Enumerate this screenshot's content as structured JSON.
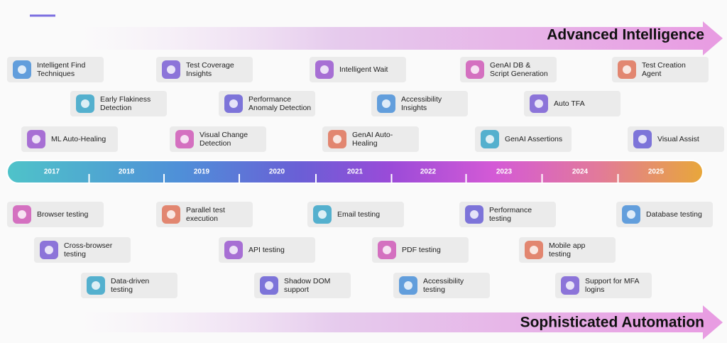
{
  "header": {
    "title": "Advanced Intelligence"
  },
  "footer": {
    "title": "Sophisticated Automation"
  },
  "timeline": {
    "years": [
      "2017",
      "2018",
      "2019",
      "2020",
      "2021",
      "2022",
      "2023",
      "2024",
      "2025"
    ]
  },
  "top_cards": [
    {
      "lines": [
        "Intelligent Find",
        "Techniques"
      ]
    },
    {
      "lines": [
        "Test Coverage",
        "Insights"
      ]
    },
    {
      "lines": [
        "Intelligent Wait"
      ]
    },
    {
      "lines": [
        "GenAI DB &",
        "Script Generation"
      ]
    },
    {
      "lines": [
        "Test Creation",
        "Agent"
      ]
    },
    {
      "lines": [
        "Early Flakiness",
        "Detection"
      ]
    },
    {
      "lines": [
        "Performance",
        "Anomaly Detection"
      ]
    },
    {
      "lines": [
        "Accessibility",
        "Insights"
      ]
    },
    {
      "lines": [
        "Auto TFA"
      ]
    },
    {
      "lines": [
        "ML Auto-Healing"
      ]
    },
    {
      "lines": [
        "Visual Change",
        "Detection"
      ]
    },
    {
      "lines": [
        "GenAI Auto-",
        "Healing"
      ]
    },
    {
      "lines": [
        "GenAI Assertions"
      ]
    },
    {
      "lines": [
        "Visual Assist"
      ]
    }
  ],
  "bottom_cards": [
    {
      "lines": [
        "Browser testing"
      ]
    },
    {
      "lines": [
        "Parallel test",
        "execution"
      ]
    },
    {
      "lines": [
        "Email testing"
      ]
    },
    {
      "lines": [
        "Performance",
        "testing"
      ]
    },
    {
      "lines": [
        "Database testing"
      ]
    },
    {
      "lines": [
        "Cross-browser",
        "testing"
      ]
    },
    {
      "lines": [
        "API testing"
      ]
    },
    {
      "lines": [
        "PDF testing"
      ]
    },
    {
      "lines": [
        "Mobile app",
        "testing"
      ]
    },
    {
      "lines": [
        "Data-driven",
        "testing"
      ]
    },
    {
      "lines": [
        "Shadow DOM",
        "support"
      ]
    },
    {
      "lines": [
        "Accessibility",
        "testing"
      ]
    },
    {
      "lines": [
        "Support for MFA",
        "logins"
      ]
    }
  ]
}
